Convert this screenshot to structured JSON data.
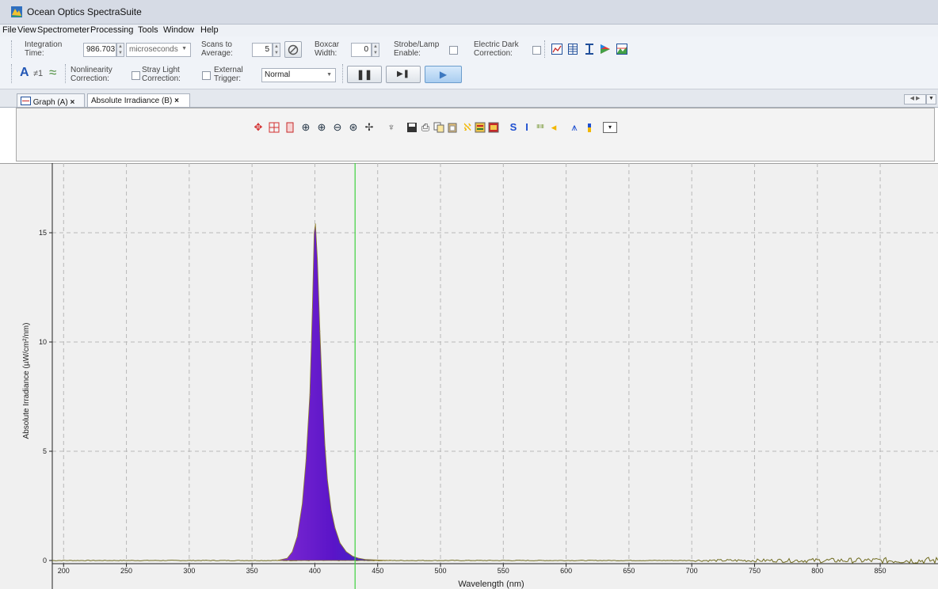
{
  "window": {
    "title": "Ocean Optics SpectraSuite"
  },
  "menu": [
    "File",
    "View",
    "Spectrometer",
    "Processing",
    "Tools",
    "Window",
    "Help"
  ],
  "acquisition": {
    "integration_time_label": [
      "Integration",
      "Time:"
    ],
    "integration_time_value": "986.703",
    "integration_time_unit": "microseconds",
    "scans_label": [
      "Scans to",
      "Average:"
    ],
    "scans_value": "5",
    "boxcar_label": [
      "Boxcar",
      "Width:"
    ],
    "boxcar_value": "0",
    "strobe_label": [
      "Strobe/Lamp",
      "Enable:"
    ],
    "dark_label": [
      "Electric Dark",
      "Correction:"
    ],
    "nonlinearity_label": [
      "Nonlinearity",
      "Correction:"
    ],
    "stray_label": [
      "Stray Light",
      "Correction:"
    ],
    "trigger_label": [
      "External",
      "Trigger:"
    ],
    "trigger_mode": "Normal",
    "mode_glyph_a": "A",
    "mode_glyph_b": "≠1",
    "mode_glyph_c": "≈",
    "toolbar_icons": [
      "graph-icon",
      "table-icon",
      "spectrum-select-icon",
      "color-icon",
      "image-icon"
    ]
  },
  "tabs": [
    {
      "label": "Graph (A)",
      "close": "×"
    },
    {
      "label": "Absolute Irradiance (B)",
      "close": "×"
    }
  ],
  "graph_toolbar_icons": [
    "cursor-icon",
    "crosshair-icon",
    "scroll-icon",
    "zoom-icon",
    "zoom-in-icon",
    "zoom-out-icon",
    "zoom-extent-icon",
    "pan-icon",
    "lamp-icon",
    "save-icon",
    "print-icon",
    "copy-icon",
    "paste-icon",
    "overlay-icon",
    "export-icon",
    "convert-icon",
    "s-icon",
    "i-icon",
    "spectrum-icon",
    "flag-icon",
    "peak-icon",
    "level-icon",
    "dropdown-icon"
  ],
  "colors": {
    "peak_fill_top": "#5a14c8",
    "peak_fill_bottom": "#7e2ad2",
    "cursor_line": "#3ed13e",
    "baseline_noise": "#6f6a1e",
    "grid": "#b8b8b8"
  },
  "chart_data": {
    "type": "area",
    "title": "",
    "xlabel": "Wavelength (nm)",
    "ylabel": "Absolute Irradiance (µW/cm²/nm)",
    "xlim": [
      191,
      896
    ],
    "ylim": [
      -1,
      17.5
    ],
    "x_ticks": [
      200,
      250,
      300,
      350,
      400,
      450,
      500,
      550,
      600,
      650,
      700,
      750,
      800,
      850
    ],
    "y_ticks": [
      0,
      5,
      10,
      15
    ],
    "grid": true,
    "cursor_x": 432,
    "series": [
      {
        "x": [
          370,
          378,
          382,
          386,
          390,
          393,
          396,
          398,
          399.5,
          400.5,
          402,
          404,
          406,
          408,
          410,
          413,
          416,
          420,
          425,
          430,
          435,
          440,
          450,
          460
        ],
        "y": [
          0,
          0.1,
          0.4,
          1.1,
          2.6,
          4.6,
          7.6,
          11.5,
          15.0,
          15.4,
          13.8,
          10.5,
          7.6,
          5.3,
          3.7,
          2.3,
          1.5,
          0.8,
          0.4,
          0.2,
          0.1,
          0.05,
          0.02,
          0
        ]
      }
    ]
  }
}
